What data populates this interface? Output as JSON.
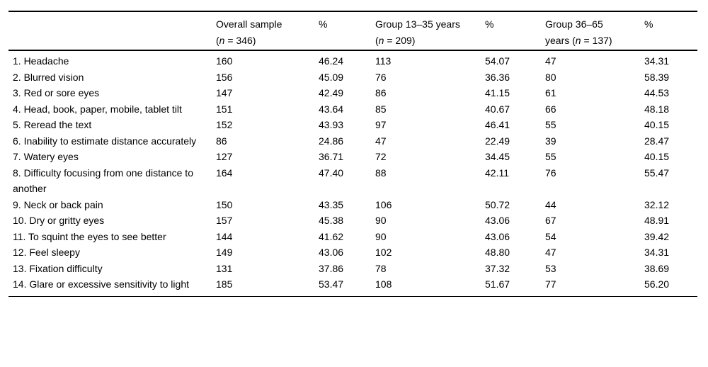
{
  "table": {
    "headers": {
      "empty": "",
      "percent": "%",
      "overall": {
        "line1": "Overall sample",
        "n_pre": "(",
        "n_italic": "n",
        "n_post": " = 346)"
      },
      "group_13_35": {
        "line1": "Group 13–35 years",
        "n_pre": "(",
        "n_italic": "n",
        "n_post": " = 209)"
      },
      "group_36_65": {
        "line1": "Group 36–65",
        "n_pre": "years (",
        "n_italic": "n",
        "n_post": " = 137)"
      }
    },
    "rows": [
      {
        "symptom": "1. Headache",
        "overall_n": "160",
        "overall_pct": "46.24",
        "g1_n": "113",
        "g1_pct": "54.07",
        "g2_n": "47",
        "g2_pct": "34.31"
      },
      {
        "symptom": "2. Blurred vision",
        "overall_n": "156",
        "overall_pct": "45.09",
        "g1_n": "76",
        "g1_pct": "36.36",
        "g2_n": "80",
        "g2_pct": "58.39"
      },
      {
        "symptom": "3. Red or sore eyes",
        "overall_n": "147",
        "overall_pct": "42.49",
        "g1_n": "86",
        "g1_pct": "41.15",
        "g2_n": "61",
        "g2_pct": "44.53"
      },
      {
        "symptom": "4. Head, book, paper, mobile, tablet tilt",
        "overall_n": "151",
        "overall_pct": "43.64",
        "g1_n": "85",
        "g1_pct": "40.67",
        "g2_n": "66",
        "g2_pct": "48.18"
      },
      {
        "symptom": "5. Reread the text",
        "overall_n": "152",
        "overall_pct": "43.93",
        "g1_n": "97",
        "g1_pct": "46.41",
        "g2_n": "55",
        "g2_pct": "40.15"
      },
      {
        "symptom": "6. Inability to estimate distance accurately",
        "overall_n": "86",
        "overall_pct": "24.86",
        "g1_n": "47",
        "g1_pct": "22.49",
        "g2_n": "39",
        "g2_pct": "28.47"
      },
      {
        "symptom": "7. Watery eyes",
        "overall_n": "127",
        "overall_pct": "36.71",
        "g1_n": "72",
        "g1_pct": "34.45",
        "g2_n": "55",
        "g2_pct": "40.15"
      },
      {
        "symptom": "8. Difficulty focusing from one distance to another",
        "overall_n": "164",
        "overall_pct": "47.40",
        "g1_n": "88",
        "g1_pct": "42.11",
        "g2_n": "76",
        "g2_pct": "55.47"
      },
      {
        "symptom": "9. Neck or back pain",
        "overall_n": "150",
        "overall_pct": "43.35",
        "g1_n": "106",
        "g1_pct": "50.72",
        "g2_n": "44",
        "g2_pct": "32.12"
      },
      {
        "symptom": "10. Dry or gritty eyes",
        "overall_n": "157",
        "overall_pct": "45.38",
        "g1_n": "90",
        "g1_pct": "43.06",
        "g2_n": "67",
        "g2_pct": "48.91"
      },
      {
        "symptom": "11. To squint the eyes to see better",
        "overall_n": "144",
        "overall_pct": "41.62",
        "g1_n": "90",
        "g1_pct": "43.06",
        "g2_n": "54",
        "g2_pct": "39.42"
      },
      {
        "symptom": "12. Feel sleepy",
        "overall_n": "149",
        "overall_pct": "43.06",
        "g1_n": "102",
        "g1_pct": "48.80",
        "g2_n": "47",
        "g2_pct": "34.31"
      },
      {
        "symptom": "13. Fixation difficulty",
        "overall_n": "131",
        "overall_pct": "37.86",
        "g1_n": "78",
        "g1_pct": "37.32",
        "g2_n": "53",
        "g2_pct": "38.69"
      },
      {
        "symptom": "14. Glare or excessive sensitivity to light",
        "overall_n": "185",
        "overall_pct": "53.47",
        "g1_n": "108",
        "g1_pct": "51.67",
        "g2_n": "77",
        "g2_pct": "56.20"
      }
    ]
  }
}
